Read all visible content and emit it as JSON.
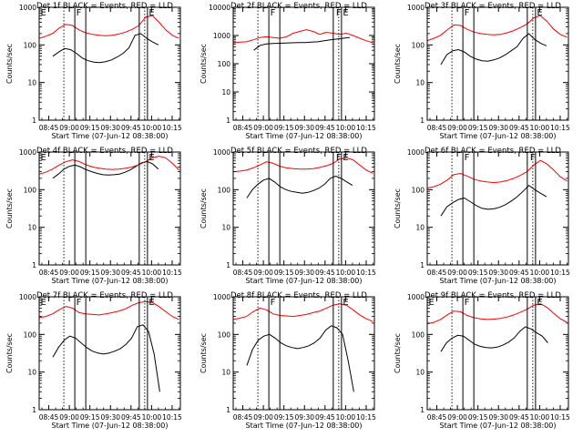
{
  "figure": {
    "title_template": "BLACK = Events, RED = LLD",
    "xlabel": "Start Time (07-Jun-12 08:38:00)",
    "ylabel": "Counts/sec",
    "series_names": [
      "Events",
      "LLD"
    ],
    "series_colors": {
      "Events": "#000000",
      "LLD": "#ff0000"
    }
  },
  "chart_data": [
    {
      "type": "line",
      "title": "Det 1f BLACK = Events, RED = LLD",
      "xlabel": "Start Time (07-Jun-12 08:38:00)",
      "ylabel": "Counts/sec",
      "scale_y": "log",
      "ylim": [
        1,
        1000
      ],
      "xlim": [
        "08:38",
        "10:21"
      ],
      "x_ticks": [
        "08:45",
        "09:00",
        "09:15",
        "09:30",
        "09:45",
        "10:00",
        "10:15"
      ],
      "y_ticks": [
        "1",
        "10",
        "100",
        "1000"
      ],
      "markers": [
        {
          "label": "E",
          "time": "08:38"
        },
        {
          "label": "F",
          "time": "09:04"
        },
        {
          "label": "E",
          "time": "09:57"
        }
      ],
      "dotted_lines": [
        "08:56",
        "09:55"
      ],
      "solid_lines": [
        "09:04",
        "09:12",
        "09:51",
        "09:57"
      ],
      "series": [
        {
          "name": "Events",
          "start": "08:48",
          "end": "10:05",
          "values": [
            50,
            65,
            80,
            75,
            60,
            45,
            38,
            35,
            34,
            36,
            40,
            48,
            60,
            85,
            180,
            200,
            150,
            120,
            100
          ]
        },
        {
          "name": "LLD",
          "start": "08:38",
          "end": "10:20",
          "values": [
            150,
            170,
            200,
            280,
            350,
            330,
            250,
            210,
            190,
            180,
            175,
            180,
            195,
            220,
            260,
            330,
            550,
            600,
            400,
            250,
            180,
            150
          ]
        }
      ]
    },
    {
      "type": "line",
      "title": "Det 2f BLACK = Events, RED = LLD",
      "xlabel": "Start Time (07-Jun-12 08:38:00)",
      "ylabel": "Counts/sec",
      "scale_y": "log",
      "ylim": [
        1,
        10000
      ],
      "xlim": [
        "08:38",
        "10:21"
      ],
      "x_ticks": [
        "08:45",
        "09:00",
        "09:15",
        "09:30",
        "09:45",
        "10:00",
        "10:15"
      ],
      "y_ticks": [
        "1",
        "10",
        "100",
        "1000",
        "10000"
      ],
      "markers": [
        {
          "label": "F",
          "time": "09:04"
        },
        {
          "label": "F",
          "time": "09:52"
        },
        {
          "label": "E",
          "time": "09:57"
        }
      ],
      "dotted_lines": [
        "08:56",
        "09:55"
      ],
      "solid_lines": [
        "09:04",
        "09:12",
        "09:51",
        "09:57"
      ],
      "series": [
        {
          "name": "Events",
          "start": "08:53",
          "end": "10:03",
          "values": [
            300,
            450,
            500,
            520,
            530,
            540,
            550,
            560,
            560,
            580,
            600,
            650,
            700,
            750,
            800,
            850
          ]
        },
        {
          "name": "LLD",
          "start": "08:38",
          "end": "10:20",
          "values": [
            550,
            580,
            600,
            700,
            850,
            900,
            850,
            800,
            900,
            1200,
            1400,
            1600,
            1400,
            1100,
            1300,
            1200,
            1100,
            1200,
            1000,
            800,
            650,
            550
          ]
        }
      ]
    },
    {
      "type": "line",
      "title": "Det 3f BLACK = Events, RED = LLD",
      "xlabel": "Start Time (07-Jun-12 08:38:00)",
      "ylabel": "Counts/sec",
      "scale_y": "log",
      "ylim": [
        1,
        1000
      ],
      "xlim": [
        "08:38",
        "10:21"
      ],
      "x_ticks": [
        "08:45",
        "09:00",
        "09:15",
        "09:30",
        "09:45",
        "10:00",
        "10:15"
      ],
      "y_ticks": [
        "1",
        "10",
        "100",
        "1000"
      ],
      "markers": [
        {
          "label": "F",
          "time": "09:04"
        },
        {
          "label": "E",
          "time": "09:57"
        }
      ],
      "dotted_lines": [
        "08:56",
        "09:55"
      ],
      "solid_lines": [
        "09:04",
        "09:12",
        "09:51",
        "09:57"
      ],
      "series": [
        {
          "name": "Events",
          "start": "08:48",
          "end": "10:05",
          "values": [
            30,
            55,
            70,
            75,
            65,
            50,
            42,
            38,
            37,
            40,
            45,
            55,
            70,
            90,
            150,
            200,
            140,
            110,
            95
          ]
        },
        {
          "name": "LLD",
          "start": "08:38",
          "end": "10:20",
          "values": [
            130,
            150,
            180,
            250,
            340,
            330,
            260,
            220,
            200,
            190,
            185,
            190,
            210,
            240,
            290,
            360,
            520,
            600,
            420,
            260,
            190,
            160
          ]
        }
      ]
    },
    {
      "type": "line",
      "title": "Det 4f BLACK = Events, RED = LLD",
      "xlabel": "Start Time (07-Jun-12 08:38:00)",
      "ylabel": "Counts/sec",
      "scale_y": "log",
      "ylim": [
        1,
        1000
      ],
      "xlim": [
        "08:38",
        "10:21"
      ],
      "x_ticks": [
        "08:45",
        "09:00",
        "09:15",
        "09:30",
        "09:45",
        "10:00",
        "10:15"
      ],
      "y_ticks": [
        "1",
        "10",
        "100",
        "1000"
      ],
      "markers": [
        {
          "label": "E",
          "time": "08:38"
        },
        {
          "label": "E",
          "time": "09:57"
        }
      ],
      "dotted_lines": [
        "08:56",
        "09:55"
      ],
      "solid_lines": [
        "09:04",
        "09:12",
        "09:51",
        "09:57"
      ],
      "series": [
        {
          "name": "Events",
          "start": "08:48",
          "end": "10:05",
          "values": [
            200,
            260,
            350,
            420,
            450,
            400,
            340,
            300,
            270,
            250,
            245,
            250,
            260,
            290,
            340,
            420,
            520,
            560,
            480,
            350
          ]
        },
        {
          "name": "LLD",
          "start": "08:38",
          "end": "10:20",
          "values": [
            260,
            290,
            350,
            450,
            550,
            620,
            560,
            460,
            400,
            370,
            350,
            345,
            350,
            370,
            400,
            460,
            560,
            700,
            780,
            700,
            500,
            330
          ]
        }
      ]
    },
    {
      "type": "line",
      "title": "Det 5f BLACK = Events, RED = LLD",
      "xlabel": "Start Time (07-Jun-12 08:38:00)",
      "ylabel": "Counts/sec",
      "scale_y": "log",
      "ylim": [
        1,
        1000
      ],
      "xlim": [
        "08:38",
        "10:21"
      ],
      "x_ticks": [
        "08:45",
        "09:00",
        "09:15",
        "09:30",
        "09:45",
        "10:00",
        "10:15"
      ],
      "y_ticks": [
        "1",
        "10",
        "100",
        "1000"
      ],
      "markers": [
        {
          "label": "F",
          "time": "09:52"
        },
        {
          "label": "E",
          "time": "09:57"
        }
      ],
      "dotted_lines": [
        "08:56",
        "09:55"
      ],
      "solid_lines": [
        "09:04",
        "09:12",
        "09:51",
        "09:57"
      ],
      "series": [
        {
          "name": "Events",
          "start": "08:48",
          "end": "10:05",
          "values": [
            60,
            100,
            140,
            180,
            200,
            160,
            120,
            100,
            90,
            85,
            80,
            85,
            95,
            110,
            140,
            200,
            230,
            200,
            160,
            130
          ]
        },
        {
          "name": "LLD",
          "start": "08:38",
          "end": "10:20",
          "values": [
            300,
            310,
            330,
            380,
            450,
            550,
            500,
            420,
            380,
            360,
            350,
            350,
            360,
            390,
            430,
            500,
            650,
            700,
            620,
            450,
            330,
            270
          ]
        }
      ]
    },
    {
      "type": "line",
      "title": "Det 6f BLACK = Events, RED = LLD",
      "xlabel": "Start Time (07-Jun-12 08:38:00)",
      "ylabel": "Counts/sec",
      "scale_y": "log",
      "ylim": [
        1,
        1000
      ],
      "xlim": [
        "08:38",
        "10:21"
      ],
      "x_ticks": [
        "08:45",
        "09:00",
        "09:15",
        "09:30",
        "09:45",
        "10:00",
        "10:15"
      ],
      "y_ticks": [
        "1",
        "10",
        "100",
        "1000"
      ],
      "markers": [
        {
          "label": "F",
          "time": "09:04"
        },
        {
          "label": "F",
          "time": "09:52"
        }
      ],
      "dotted_lines": [
        "08:56",
        "09:55"
      ],
      "solid_lines": [
        "09:04",
        "09:12",
        "09:51",
        "09:57"
      ],
      "series": [
        {
          "name": "Events",
          "start": "08:48",
          "end": "10:05",
          "values": [
            20,
            35,
            45,
            55,
            60,
            48,
            38,
            32,
            30,
            31,
            34,
            40,
            50,
            65,
            90,
            130,
            100,
            80,
            65
          ]
        },
        {
          "name": "LLD",
          "start": "08:38",
          "end": "10:20",
          "values": [
            110,
            120,
            140,
            180,
            250,
            270,
            230,
            190,
            170,
            160,
            155,
            160,
            175,
            200,
            240,
            300,
            450,
            600,
            480,
            330,
            220,
            170
          ]
        }
      ]
    },
    {
      "type": "line",
      "title": "Det 7f BLACK = Events, RED = LLD",
      "xlabel": "Start Time (07-Jun-12 08:38:00)",
      "ylabel": "Counts/sec",
      "scale_y": "log",
      "ylim": [
        1,
        1000
      ],
      "xlim": [
        "08:38",
        "10:21"
      ],
      "x_ticks": [
        "08:45",
        "09:00",
        "09:15",
        "09:30",
        "09:45",
        "10:00",
        "10:15"
      ],
      "y_ticks": [
        "1",
        "10",
        "100",
        "1000"
      ],
      "markers": [
        {
          "label": "E",
          "time": "08:38"
        },
        {
          "label": "F",
          "time": "09:04"
        },
        {
          "label": "E",
          "time": "09:57"
        }
      ],
      "dotted_lines": [
        "08:56",
        "09:55"
      ],
      "solid_lines": [
        "09:04",
        "09:12",
        "09:51",
        "09:57"
      ],
      "series": [
        {
          "name": "Events",
          "start": "08:48",
          "end": "10:06",
          "values": [
            25,
            45,
            70,
            90,
            80,
            60,
            45,
            36,
            32,
            30,
            32,
            36,
            42,
            55,
            80,
            160,
            180,
            120,
            30,
            3
          ]
        },
        {
          "name": "LLD",
          "start": "08:38",
          "end": "10:20",
          "values": [
            280,
            300,
            350,
            450,
            550,
            500,
            380,
            350,
            340,
            330,
            350,
            380,
            420,
            480,
            600,
            700,
            750,
            700,
            550,
            400,
            300,
            250
          ]
        }
      ]
    },
    {
      "type": "line",
      "title": "Det 8f BLACK = Events, RED = LLD",
      "xlabel": "Start Time (07-Jun-12 08:38:00)",
      "ylabel": "Counts/sec",
      "scale_y": "log",
      "ylim": [
        1,
        1000
      ],
      "xlim": [
        "08:38",
        "10:21"
      ],
      "x_ticks": [
        "08:45",
        "09:00",
        "09:15",
        "09:30",
        "09:45",
        "10:00",
        "10:15"
      ],
      "y_ticks": [
        "1",
        "10",
        "100",
        "1000"
      ],
      "markers": [
        {
          "label": "F",
          "time": "09:04"
        },
        {
          "label": "E",
          "time": "09:57"
        }
      ],
      "dotted_lines": [
        "08:56",
        "09:55"
      ],
      "solid_lines": [
        "09:04",
        "09:12",
        "09:51",
        "09:57"
      ],
      "series": [
        {
          "name": "Events",
          "start": "08:48",
          "end": "10:06",
          "values": [
            15,
            40,
            70,
            90,
            100,
            80,
            60,
            50,
            45,
            42,
            45,
            50,
            60,
            80,
            130,
            170,
            150,
            100,
            20,
            3
          ]
        },
        {
          "name": "LLD",
          "start": "08:38",
          "end": "10:20",
          "values": [
            250,
            270,
            300,
            400,
            500,
            450,
            350,
            320,
            310,
            300,
            320,
            340,
            380,
            420,
            500,
            600,
            650,
            600,
            450,
            330,
            260,
            220
          ]
        }
      ]
    },
    {
      "type": "line",
      "title": "Det 9f BLACK = Events, RED = LLD",
      "xlabel": "Start Time (07-Jun-12 08:38:00)",
      "ylabel": "Counts/sec",
      "scale_y": "log",
      "ylim": [
        1,
        1000
      ],
      "xlim": [
        "08:38",
        "10:21"
      ],
      "x_ticks": [
        "08:45",
        "09:00",
        "09:15",
        "09:30",
        "09:45",
        "10:00",
        "10:15"
      ],
      "y_ticks": [
        "1",
        "10",
        "100",
        "1000"
      ],
      "markers": [
        {
          "label": "E",
          "time": "08:38"
        },
        {
          "label": "F",
          "time": "09:04"
        },
        {
          "label": "E",
          "time": "09:57"
        }
      ],
      "dotted_lines": [
        "08:56",
        "09:55"
      ],
      "solid_lines": [
        "09:04",
        "09:12",
        "09:51",
        "09:57"
      ],
      "series": [
        {
          "name": "Events",
          "start": "08:48",
          "end": "10:06",
          "values": [
            35,
            60,
            80,
            95,
            90,
            70,
            55,
            48,
            45,
            44,
            46,
            52,
            62,
            80,
            120,
            160,
            140,
            110,
            90,
            60
          ]
        },
        {
          "name": "LLD",
          "start": "08:38",
          "end": "10:20",
          "values": [
            190,
            210,
            250,
            330,
            420,
            400,
            320,
            280,
            260,
            250,
            255,
            265,
            290,
            330,
            390,
            470,
            600,
            650,
            520,
            360,
            260,
            210
          ]
        }
      ]
    }
  ]
}
